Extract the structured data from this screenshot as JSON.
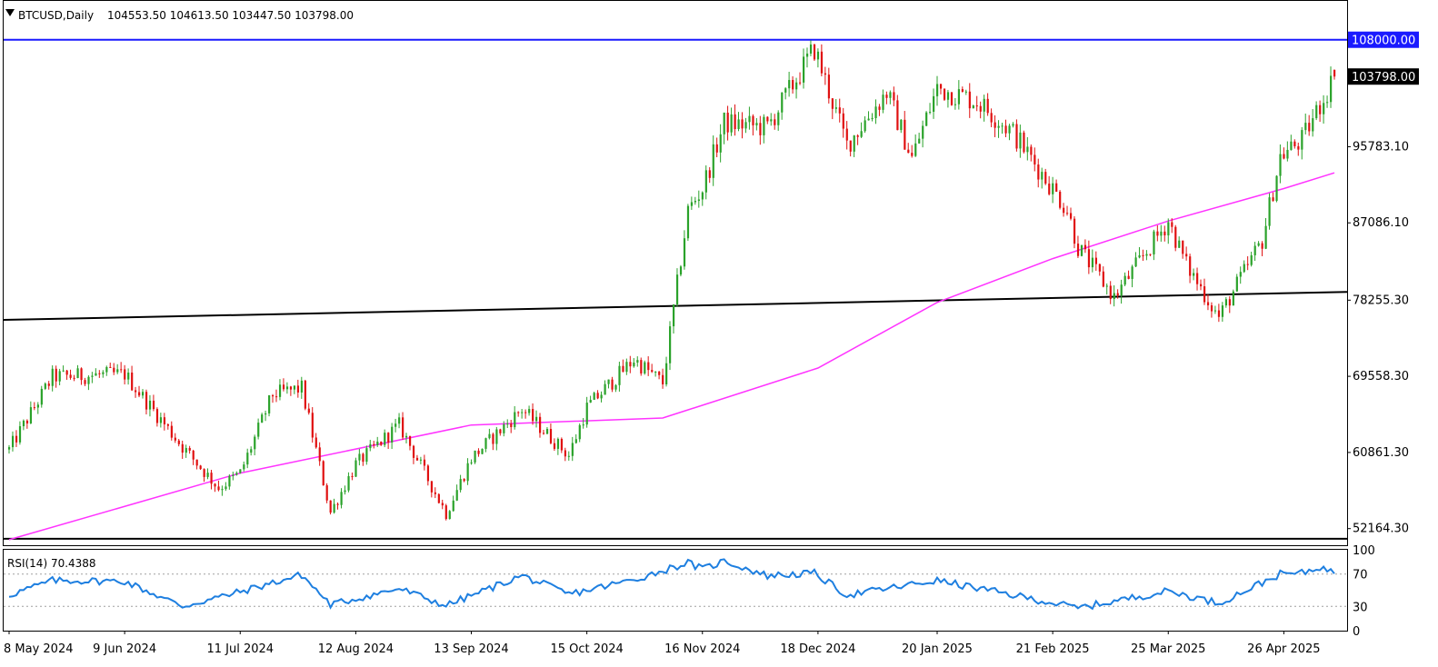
{
  "header": {
    "symbol_label": "BTCUSD,Daily",
    "ohlc": "104553.50 104613.50 103447.50 103798.00"
  },
  "rsi_label": "RSI(14) 70.4388",
  "current_price_tag": "103798.00",
  "colors": {
    "bull": "#2aa22a",
    "bear": "#e01010",
    "ma": "#ff33ff",
    "resistance": "#1a1aff",
    "support": "#000000",
    "rsi": "#1e7fe0",
    "price_tag_bg": "#000000",
    "resistance_tag_bg": "#1a1aff"
  },
  "chart_data": [
    {
      "type": "candlestick",
      "title": "BTCUSD,Daily",
      "timeframe": "Daily",
      "ohlc_last": {
        "open": 104553.5,
        "high": 104613.5,
        "low": 103447.5,
        "close": 103798.0
      },
      "ylim": [
        50264,
        112436
      ],
      "y_ticks": [
        "52164.30",
        "60861.30",
        "69558.30",
        "78255.30",
        "87086.10",
        "95783.10",
        "103798.00",
        "108000.00"
      ],
      "x_ticks": [
        "8 May 2024",
        "9 Jun 2024",
        "11 Jul 2024",
        "12 Aug 2024",
        "13 Sep 2024",
        "15 Oct 2024",
        "16 Nov 2024",
        "18 Dec 2024",
        "20 Jan 2025",
        "21 Feb 2025",
        "25 Mar 2025",
        "26 Apr 2025"
      ],
      "series": [
        {
          "name": "BTCUSD",
          "kind": "candles",
          "close_path": [
            [
              "8 May 2024",
              61200
            ],
            [
              "20 May 2024",
              69500
            ],
            [
              "9 Jun 2024",
              69800
            ],
            [
              "25 Jun 2024",
              61500
            ],
            [
              "5 Jul 2024",
              56800
            ],
            [
              "11 Jul 2024",
              58500
            ],
            [
              "20 Jul 2024",
              67500
            ],
            [
              "28 Jul 2024",
              68200
            ],
            [
              "5 Aug 2024",
              54000
            ],
            [
              "12 Aug 2024",
              59500
            ],
            [
              "24 Aug 2024",
              64000
            ],
            [
              "6 Sep 2024",
              53900
            ],
            [
              "13 Sep 2024",
              60200
            ],
            [
              "27 Sep 2024",
              65800
            ],
            [
              "10 Oct 2024",
              60500
            ],
            [
              "15 Oct 2024",
              66000
            ],
            [
              "28 Oct 2024",
              71500
            ],
            [
              "5 Nov 2024",
              68800
            ],
            [
              "12 Nov 2024",
              88500
            ],
            [
              "16 Nov 2024",
              91000
            ],
            [
              "22 Nov 2024",
              98500
            ],
            [
              "4 Dec 2024",
              98000
            ],
            [
              "17 Dec 2024",
              107000
            ],
            [
              "26 Dec 2024",
              96000
            ],
            [
              "6 Jan 2025",
              102000
            ],
            [
              "13 Jan 2025",
              94500
            ],
            [
              "20 Jan 2025",
              102500
            ],
            [
              "31 Jan 2025",
              101000
            ],
            [
              "10 Feb 2025",
              97400
            ],
            [
              "25 Feb 2025",
              88600
            ],
            [
              "28 Feb 2025",
              84300
            ],
            [
              "10 Mar 2025",
              78600
            ],
            [
              "25 Mar 2025",
              87300
            ],
            [
              "30 Mar 2025",
              82300
            ],
            [
              "8 Apr 2025",
              76300
            ],
            [
              "20 Apr 2025",
              85100
            ],
            [
              "25 Apr 2025",
              94700
            ],
            [
              "1 May 2025",
              96500
            ],
            [
              "10 May 2025",
              103798
            ]
          ]
        },
        {
          "name": "MA",
          "kind": "line",
          "points": [
            [
              "8 May 2024",
              50900
            ],
            [
              "11 Jul 2024",
              58500
            ],
            [
              "13 Sep 2024",
              64000
            ],
            [
              "5 Nov 2024",
              64800
            ],
            [
              "18 Dec 2024",
              70500
            ],
            [
              "20 Jan 2025",
              78000
            ],
            [
              "21 Feb 2025",
              83000
            ],
            [
              "25 Mar 2025",
              87300
            ],
            [
              "26 Apr 2025",
              91000
            ],
            [
              "10 May 2025",
              92800
            ]
          ]
        }
      ],
      "annotations": [
        {
          "kind": "horizontal_line",
          "value": 108000.0,
          "label": "108000.00"
        },
        {
          "kind": "trendline",
          "from": [
            "8 May 2024",
            76000
          ],
          "to": [
            "10 May 2025",
            79200
          ]
        },
        {
          "kind": "horizontal_line",
          "value": 51000
        }
      ]
    },
    {
      "type": "line",
      "title": "RSI(14) 70.4388",
      "ylim": [
        0,
        100
      ],
      "y_ticks": [
        "0",
        "30",
        "70",
        "100"
      ],
      "levels": [
        30,
        70
      ],
      "series": [
        {
          "name": "RSI(14)",
          "values_path": [
            [
              "8 May 2024",
              44
            ],
            [
              "20 May 2024",
              62
            ],
            [
              "9 Jun 2024",
              61
            ],
            [
              "25 Jun 2024",
              30
            ],
            [
              "11 Jul 2024",
              48
            ],
            [
              "28 Jul 2024",
              69
            ],
            [
              "5 Aug 2024",
              32
            ],
            [
              "24 Aug 2024",
              52
            ],
            [
              "6 Sep 2024",
              31
            ],
            [
              "27 Sep 2024",
              68
            ],
            [
              "10 Oct 2024",
              45
            ],
            [
              "28 Oct 2024",
              63
            ],
            [
              "12 Nov 2024",
              84
            ],
            [
              "16 Nov 2024",
              76
            ],
            [
              "22 Nov 2024",
              86
            ],
            [
              "4 Dec 2024",
              68
            ],
            [
              "17 Dec 2024",
              71
            ],
            [
              "26 Dec 2024",
              44
            ],
            [
              "20 Jan 2025",
              62
            ],
            [
              "10 Feb 2025",
              44
            ],
            [
              "28 Feb 2025",
              28
            ],
            [
              "25 Mar 2025",
              49
            ],
            [
              "8 Apr 2025",
              34
            ],
            [
              "25 Apr 2025",
              70
            ],
            [
              "1 May 2025",
              71
            ],
            [
              "6 May 2025",
              79
            ],
            [
              "10 May 2025",
              70.4
            ]
          ]
        }
      ]
    }
  ]
}
